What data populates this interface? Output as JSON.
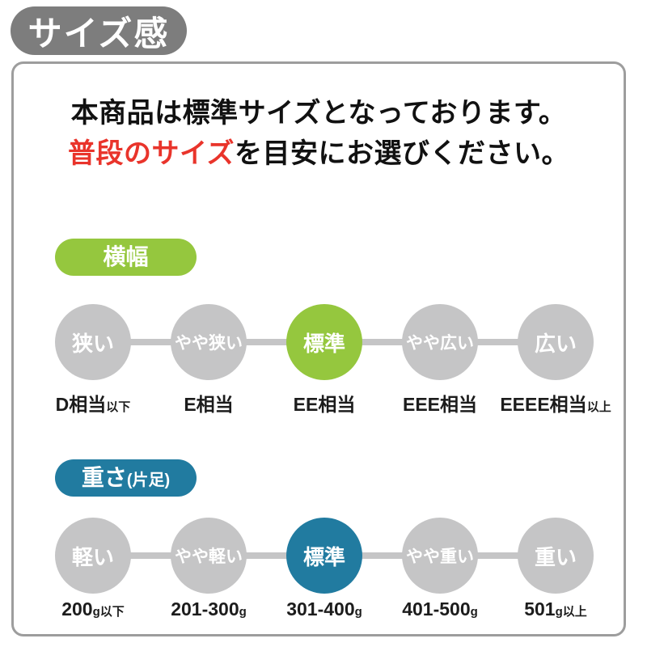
{
  "title_badge": {
    "label": "サイズ感",
    "bg": "#7d7d7d"
  },
  "intro": {
    "line1": "本商品は標準サイズとなっております。",
    "line2_highlight": "普段のサイズ",
    "line2_rest": "を目安にお選びください。",
    "highlight_color": "#e9342b"
  },
  "colors": {
    "inactive_circle": "#c5c5c6",
    "card_border": "#9d9d9d",
    "width_accent": "#95c73e",
    "weight_accent": "#217ba0"
  },
  "sections": [
    {
      "id": "width",
      "badge_main": "横幅",
      "badge_small": "",
      "accent": "#95c73e",
      "steps": [
        {
          "label": "狭い",
          "active": false,
          "sub_main": "D相当",
          "sub_suffix": "以下"
        },
        {
          "label": "やや狭い",
          "active": false,
          "sub_main": "E相当",
          "sub_suffix": ""
        },
        {
          "label": "標準",
          "active": true,
          "sub_main": "EE相当",
          "sub_suffix": ""
        },
        {
          "label": "やや広い",
          "active": false,
          "sub_main": "EEE相当",
          "sub_suffix": ""
        },
        {
          "label": "広い",
          "active": false,
          "sub_main": "EEEE相当",
          "sub_suffix": "以上"
        }
      ]
    },
    {
      "id": "weight",
      "badge_main": "重さ",
      "badge_small": "(片足)",
      "accent": "#217ba0",
      "steps": [
        {
          "label": "軽い",
          "active": false,
          "sub_main": "200",
          "sub_suffix": "g以下"
        },
        {
          "label": "やや軽い",
          "active": false,
          "sub_main": "201-300",
          "sub_suffix": "g"
        },
        {
          "label": "標準",
          "active": true,
          "sub_main": "301-400",
          "sub_suffix": "g"
        },
        {
          "label": "やや重い",
          "active": false,
          "sub_main": "401-500",
          "sub_suffix": "g"
        },
        {
          "label": "重い",
          "active": false,
          "sub_main": "501",
          "sub_suffix": "g以上"
        }
      ]
    }
  ]
}
